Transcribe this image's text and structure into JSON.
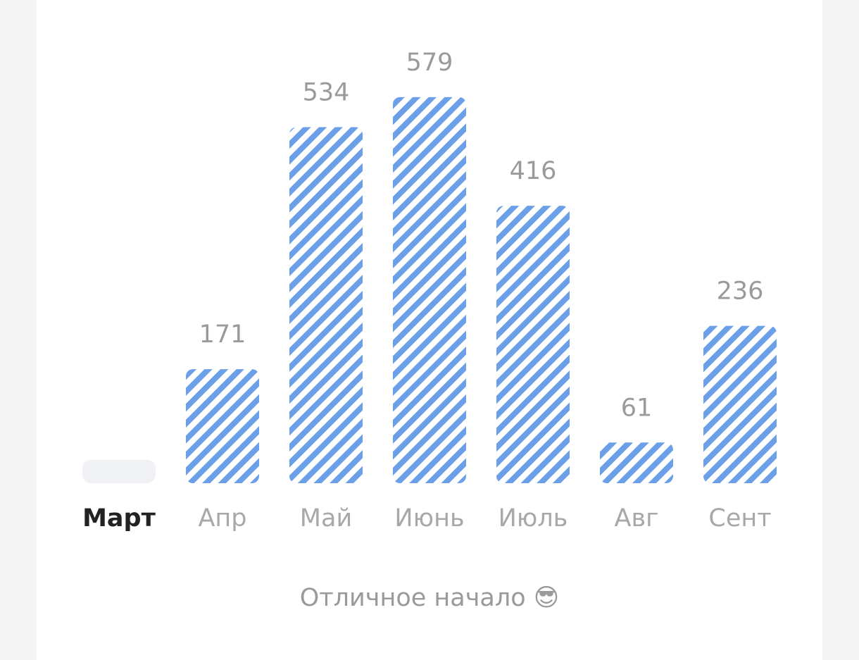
{
  "chart_data": {
    "type": "bar",
    "categories": [
      "Март",
      "Апр",
      "Май",
      "Июнь",
      "Июль",
      "Авг",
      "Сент"
    ],
    "values": [
      null,
      171,
      534,
      579,
      416,
      61,
      236
    ],
    "color": "#6b9fe8",
    "ylim": [
      0,
      600
    ],
    "selected": 0,
    "caption": "Отличное начало 😎"
  }
}
